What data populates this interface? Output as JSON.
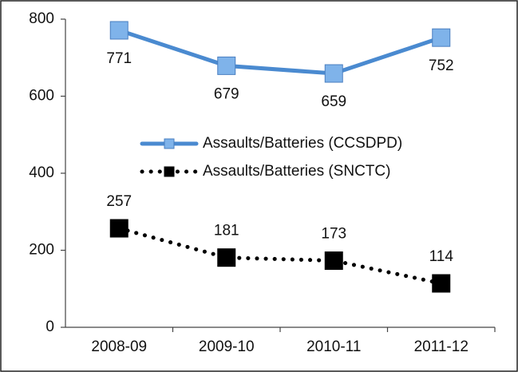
{
  "chart_data": {
    "type": "line",
    "categories": [
      "2008-09",
      "2009-10",
      "2010-11",
      "2011-12"
    ],
    "series": [
      {
        "name": "Assaults/Batteries (CCSDPD)",
        "color": "#4a8ad0",
        "marker_color": "#7fb3ea",
        "line_style": "solid",
        "values": [
          771,
          679,
          659,
          752
        ]
      },
      {
        "name": "Assaults/Batteries (SNCTC)",
        "color": "#000000",
        "marker_color": "#000000",
        "line_style": "dotted",
        "values": [
          257,
          181,
          173,
          114
        ]
      }
    ],
    "ylim": [
      0,
      800
    ],
    "yticks": [
      0,
      200,
      400,
      600,
      800
    ],
    "grid": false,
    "legend_position": "center"
  }
}
